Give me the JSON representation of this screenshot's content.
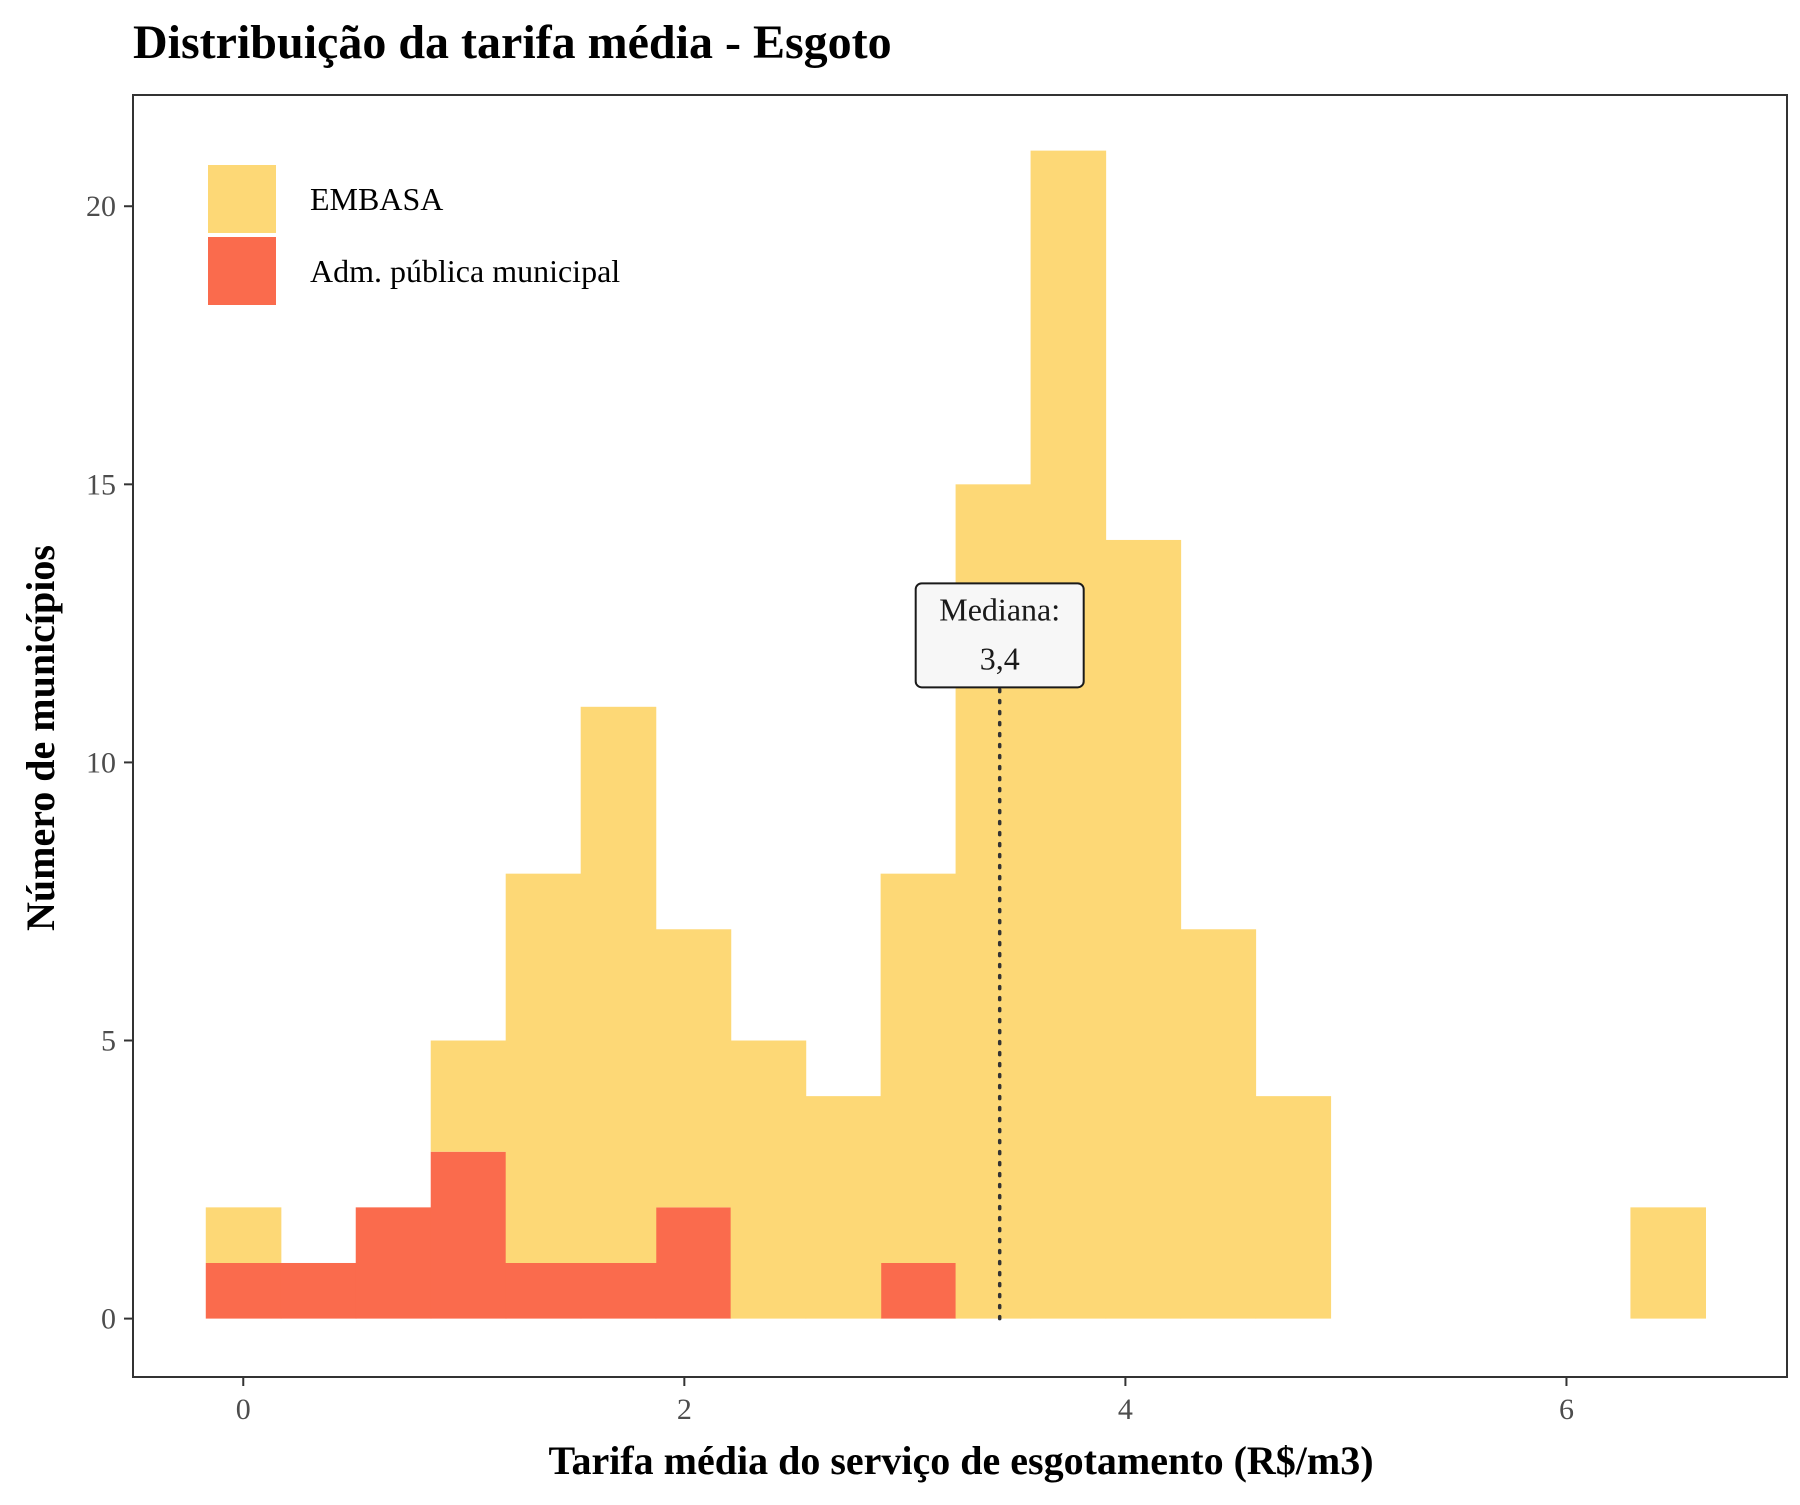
{
  "chart_data": {
    "type": "bar",
    "title": "Distribuição da tarifa média - Esgoto",
    "xlabel": "Tarifa média do serviço de esgotamento (R$/m3)",
    "ylabel": "Número de municípios",
    "xlim": [
      -0.5,
      7.0
    ],
    "ylim": [
      -1.05,
      22.0
    ],
    "x_ticks": [
      0,
      2,
      4,
      6
    ],
    "y_ticks": [
      0,
      5,
      10,
      15,
      20
    ],
    "grid": false,
    "stacked": true,
    "legend_position": "top-left",
    "bin_width": 0.34,
    "bin_starts": [
      -0.17,
      0.17,
      0.51,
      0.85,
      1.19,
      1.53,
      1.87,
      2.21,
      2.55,
      2.89,
      3.23,
      3.57,
      3.91,
      4.25,
      4.59,
      4.93,
      5.27,
      5.61,
      5.95,
      6.29
    ],
    "series": [
      {
        "name": "Adm. pública municipal",
        "color": "#FA6B4D",
        "values": [
          1,
          1,
          2,
          3,
          1,
          1,
          2,
          0,
          0,
          1,
          0,
          0,
          0,
          0,
          0,
          0,
          0,
          0,
          0,
          0
        ]
      },
      {
        "name": "EMBASA",
        "color": "#FDD876",
        "values": [
          1,
          0,
          0,
          2,
          7,
          10,
          5,
          5,
          4,
          7,
          15,
          21,
          14,
          7,
          4,
          0,
          0,
          0,
          0,
          2
        ]
      }
    ],
    "legend_order": [
      "EMBASA",
      "Adm. pública municipal"
    ],
    "annotations": [
      {
        "type": "vline",
        "x": 3.43,
        "y_top": 11.35,
        "style": "dotted",
        "label_line1": "Mediana:",
        "label_line2": "3,4"
      }
    ]
  }
}
